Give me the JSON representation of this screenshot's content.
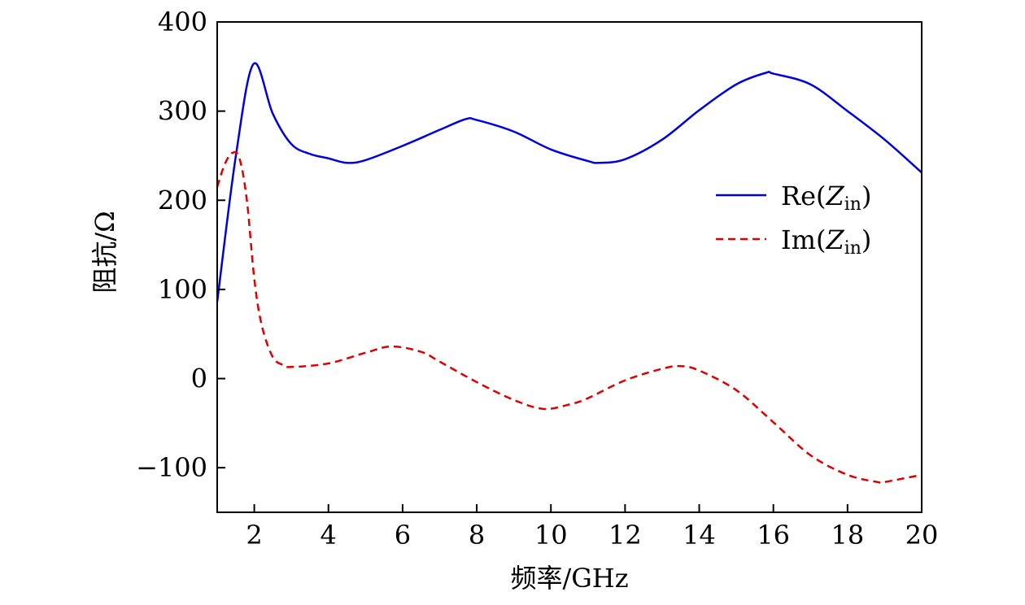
{
  "chart_data": {
    "type": "line",
    "title": "",
    "xlabel": "频率/GHz",
    "ylabel": "阻抗/Ω",
    "xlim": [
      1,
      20
    ],
    "ylim": [
      -150,
      400
    ],
    "xticks": [
      2,
      4,
      6,
      8,
      10,
      12,
      14,
      16,
      18,
      20
    ],
    "yticks": [
      -100,
      0,
      100,
      200,
      300,
      400
    ],
    "ytick_labels": [
      "−100",
      "0",
      "100",
      "200",
      "300",
      "400"
    ],
    "grid": false,
    "legend_placement": "right",
    "series": [
      {
        "name": "Re(Z_in)",
        "legend_main": "Re(",
        "legend_var": "Z",
        "legend_sub": "in",
        "legend_close": ")",
        "color": "#0000dd",
        "style": "solid",
        "x": [
          1,
          1.5,
          1.98,
          2.5,
          3,
          3.5,
          4,
          4.5,
          5,
          6,
          7,
          7.7,
          8,
          9,
          10,
          11,
          11.3,
          12,
          13,
          14,
          15,
          15.8,
          16,
          17,
          18,
          19,
          20
        ],
        "y": [
          86,
          249,
          353,
          297,
          263,
          252,
          247,
          242,
          245,
          261,
          279,
          291,
          290,
          277,
          257,
          244,
          242,
          246,
          268,
          301,
          330,
          343,
          342,
          330,
          300,
          268,
          231
        ]
      },
      {
        "name": "Im(Z_in)",
        "legend_main": "Im(",
        "legend_var": "Z",
        "legend_sub": "in",
        "legend_close": ")",
        "color": "#dd0000",
        "style": "dashed",
        "x": [
          1,
          1.2,
          1.4,
          1.6,
          1.8,
          2,
          2.2,
          2.5,
          2.8,
          3,
          4,
          5,
          5.7,
          6.5,
          7,
          8,
          9,
          9.8,
          10.5,
          11,
          12,
          13,
          13.5,
          14,
          15,
          16,
          17,
          18,
          18.8,
          19,
          20
        ],
        "y": [
          215,
          240,
          253,
          247,
          200,
          112,
          60,
          24,
          15,
          13,
          17,
          29,
          36,
          30,
          19,
          -4,
          -24,
          -34,
          -29,
          -22,
          -2,
          11,
          14,
          9,
          -13,
          -49,
          -86,
          -108,
          -116,
          -116,
          -108
        ]
      }
    ]
  }
}
